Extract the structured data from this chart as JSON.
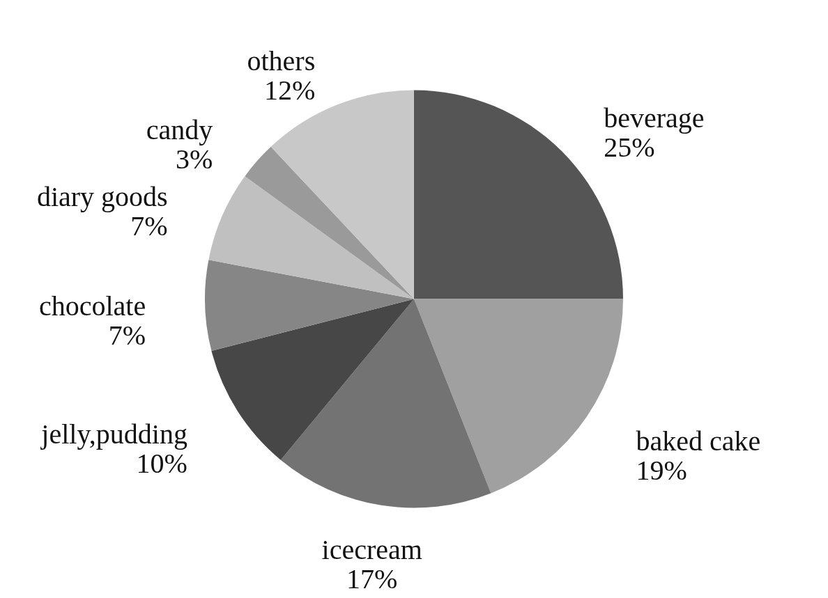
{
  "chart_data": {
    "type": "pie",
    "categories": [
      "beverage",
      "baked cake",
      "icecream",
      "jelly,pudding",
      "chocolate",
      "diary goods",
      "candy",
      "others"
    ],
    "values": [
      25,
      19,
      17,
      10,
      7,
      7,
      3,
      12
    ],
    "value_labels": [
      "25%",
      "19%",
      "17%",
      "10%",
      "7%",
      "7%",
      "3%",
      "12%"
    ],
    "colors": [
      "#555555",
      "#a0a0a0",
      "#737373",
      "#474747",
      "#868686",
      "#c0c0c0",
      "#9a9a9a",
      "#c8c8c8"
    ]
  }
}
